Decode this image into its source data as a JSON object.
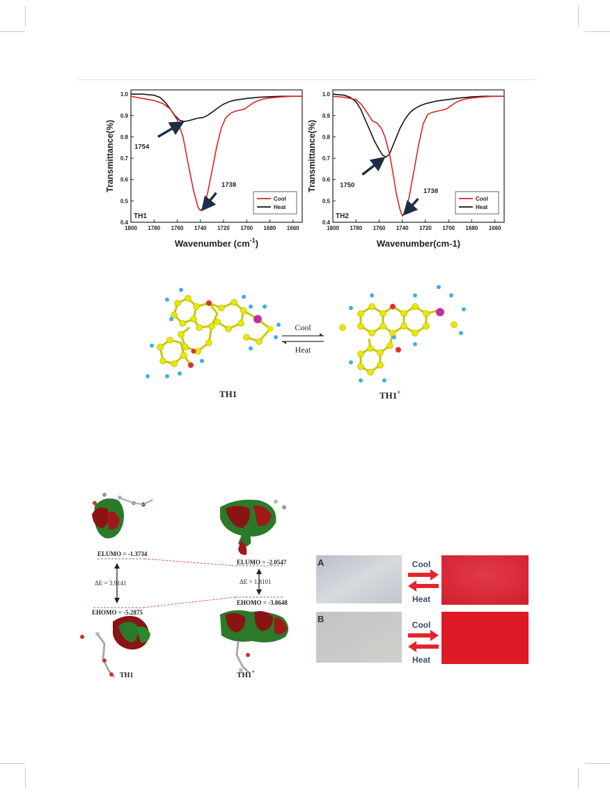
{
  "chart_data": [
    {
      "type": "line",
      "panel_label": "TH1",
      "xlabel": "Wavenumber (cm",
      "xlabel_sup": "-1",
      "xlabel_close": ")",
      "ylabel": "Transmittance(%)",
      "xlim": [
        1800,
        1652
      ],
      "ylim": [
        0.4,
        1.02
      ],
      "xticks": [
        1800,
        1780,
        1760,
        1740,
        1720,
        1700,
        1680,
        1660
      ],
      "yticks": [
        0.4,
        0.5,
        0.6,
        0.7,
        0.8,
        0.9,
        1.0
      ],
      "ytick_labels": [
        "0.4",
        "0.5",
        "0.6",
        "0.7",
        "0.8",
        "0.9",
        "1.0"
      ],
      "legend": "bottom-right",
      "series": [
        {
          "name": "Cool",
          "color": "#e02020",
          "x": [
            1800,
            1790,
            1780,
            1772,
            1766,
            1760,
            1755,
            1750,
            1746,
            1742,
            1740,
            1737,
            1734,
            1730,
            1726,
            1722,
            1718,
            1714,
            1710,
            1706,
            1702,
            1698,
            1694,
            1690,
            1685,
            1680,
            1670,
            1660,
            1652
          ],
          "y": [
            0.99,
            0.98,
            0.97,
            0.955,
            0.93,
            0.88,
            0.8,
            0.66,
            0.55,
            0.47,
            0.455,
            0.47,
            0.53,
            0.64,
            0.75,
            0.84,
            0.89,
            0.91,
            0.92,
            0.925,
            0.93,
            0.945,
            0.96,
            0.97,
            0.978,
            0.982,
            0.987,
            0.99,
            0.99
          ]
        },
        {
          "name": "Heat",
          "color": "#111111",
          "x": [
            1800,
            1790,
            1780,
            1775,
            1770,
            1766,
            1762,
            1758,
            1754,
            1750,
            1746,
            1742,
            1738,
            1734,
            1730,
            1725,
            1720,
            1715,
            1710,
            1700,
            1690,
            1680,
            1670,
            1660,
            1652
          ],
          "y": [
            1.0,
            1.0,
            0.995,
            0.985,
            0.96,
            0.93,
            0.9,
            0.878,
            0.872,
            0.876,
            0.882,
            0.888,
            0.89,
            0.9,
            0.915,
            0.935,
            0.953,
            0.965,
            0.972,
            0.98,
            0.985,
            0.988,
            0.99,
            0.99,
            0.99
          ]
        }
      ],
      "annotations": [
        {
          "text": "1754",
          "x": 1754,
          "y": 0.872,
          "label_x": 1783,
          "label_y": 0.78
        },
        {
          "text": "1738",
          "x": 1738,
          "y": 0.46,
          "label_x": 1723,
          "label_y": 0.56
        }
      ]
    },
    {
      "type": "line",
      "panel_label": "TH2",
      "xlabel": "Wavenumber(cm-1)",
      "ylabel": "Transmittance(%)",
      "xlim": [
        1800,
        1652
      ],
      "ylim": [
        0.4,
        1.02
      ],
      "xticks": [
        1800,
        1780,
        1760,
        1740,
        1720,
        1700,
        1680,
        1660
      ],
      "yticks": [
        0.4,
        0.5,
        0.6,
        0.7,
        0.8,
        0.9,
        1.0
      ],
      "ytick_labels": [
        "0.4",
        "0.5",
        "0.6",
        "0.7",
        "0.8",
        "0.9",
        "1.0"
      ],
      "legend": "bottom-right",
      "series": [
        {
          "name": "Cool",
          "color": "#e02020",
          "x": [
            1800,
            1790,
            1780,
            1775,
            1770,
            1766,
            1762,
            1758,
            1755,
            1751,
            1748,
            1745,
            1742,
            1740,
            1737,
            1734,
            1730,
            1726,
            1722,
            1718,
            1714,
            1710,
            1706,
            1702,
            1698,
            1694,
            1690,
            1685,
            1680,
            1670,
            1660,
            1652
          ],
          "y": [
            0.99,
            0.985,
            0.975,
            0.95,
            0.91,
            0.875,
            0.865,
            0.84,
            0.8,
            0.72,
            0.63,
            0.53,
            0.46,
            0.43,
            0.45,
            0.52,
            0.64,
            0.76,
            0.86,
            0.905,
            0.915,
            0.92,
            0.925,
            0.93,
            0.945,
            0.96,
            0.97,
            0.978,
            0.982,
            0.987,
            0.99,
            0.99
          ]
        },
        {
          "name": "Heat",
          "color": "#111111",
          "x": [
            1800,
            1790,
            1785,
            1780,
            1776,
            1772,
            1768,
            1764,
            1760,
            1757,
            1754,
            1751,
            1748,
            1745,
            1742,
            1738,
            1734,
            1730,
            1725,
            1720,
            1715,
            1710,
            1700,
            1690,
            1680,
            1670,
            1660,
            1652
          ],
          "y": [
            1.0,
            0.995,
            0.985,
            0.965,
            0.93,
            0.88,
            0.83,
            0.78,
            0.74,
            0.715,
            0.705,
            0.72,
            0.76,
            0.8,
            0.84,
            0.88,
            0.91,
            0.93,
            0.945,
            0.955,
            0.962,
            0.968,
            0.975,
            0.982,
            0.987,
            0.99,
            0.99,
            0.99
          ]
        }
      ],
      "annotations": [
        {
          "text": "1750",
          "x": 1755,
          "y": 0.705,
          "label_x": 1780,
          "label_y": 0.6
        },
        {
          "text": "1738",
          "x": 1738,
          "y": 0.44,
          "label_x": 1723,
          "label_y": 0.53
        }
      ]
    }
  ],
  "scheme": {
    "left_label": "TH1",
    "right_label": "TH1",
    "right_label_sup": "+",
    "forward": "Cool",
    "backward": "Heat"
  },
  "orbitals": {
    "th1_lumo": "ELUMO = -1.3734",
    "th1_homo": "EHOMO = -5.2875",
    "th1_gap": "ΔE = 3.9141",
    "th1p_lumo": "ELUMO = -2.0547",
    "th1p_homo": "EHOMO = -3.8648",
    "th1p_gap": "ΔE = 1.8101",
    "label_left": "TH1",
    "label_right": "TH1",
    "label_right_sup": "+"
  },
  "photos": {
    "row_a_label": "A",
    "row_b_label": "B",
    "cool": "Cool",
    "heat": "Heat",
    "colors": {
      "grey_a": "#c4c9d2",
      "grey_b": "#c9ccc9",
      "red_a": "#d9202e",
      "red_b": "#dd1a26",
      "arrow": "#e4242c"
    }
  }
}
